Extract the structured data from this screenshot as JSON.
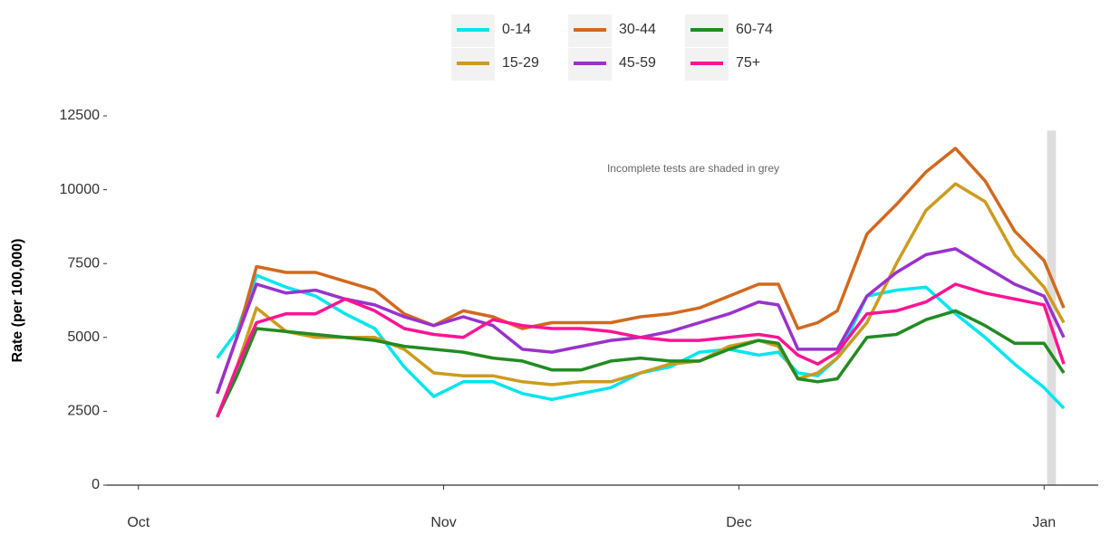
{
  "chart_data": {
    "type": "line",
    "y_label": "Rate (per 100,000)",
    "annotation": "Incomplete tests are shaded in grey",
    "x": [
      8,
      10,
      12,
      15,
      18,
      21,
      24,
      27,
      30,
      33,
      36,
      39,
      42,
      45,
      48,
      51,
      54,
      57,
      60,
      63,
      65,
      67,
      69,
      71,
      74,
      77,
      80,
      83,
      86,
      89,
      92,
      94
    ],
    "xlim": [
      -3.2,
      97.5
    ],
    "xticks": [
      {
        "value": 0,
        "label": "Oct"
      },
      {
        "value": 31,
        "label": "Nov"
      },
      {
        "value": 61,
        "label": "Dec"
      },
      {
        "value": 92,
        "label": "Jan"
      }
    ],
    "ylim": [
      0,
      12500
    ],
    "yticks": [
      0,
      2500,
      5000,
      7500,
      10000,
      12500
    ],
    "grid": false,
    "legend": "top",
    "shaded_region": {
      "xlim": [
        92.3,
        93.2
      ],
      "ylim": [
        0,
        12000
      ],
      "color": "#dddddd"
    },
    "series": [
      {
        "name": "0-14",
        "color": "#00e5ee",
        "values": [
          4300,
          5200,
          7100,
          6700,
          6400,
          5800,
          5300,
          4000,
          3000,
          3500,
          3500,
          3100,
          2900,
          3100,
          3300,
          3800,
          4000,
          4500,
          4600,
          4400,
          4500,
          3800,
          3700,
          4300,
          6400,
          6600,
          6700,
          5800,
          5000,
          4100,
          3300,
          2600
        ]
      },
      {
        "name": "15-29",
        "color": "#cd9b1d",
        "values": [
          2300,
          4000,
          6000,
          5200,
          5000,
          5000,
          5000,
          4600,
          3800,
          3700,
          3700,
          3500,
          3400,
          3500,
          3500,
          3800,
          4100,
          4200,
          4700,
          4900,
          4700,
          3600,
          3800,
          4300,
          5500,
          7500,
          9300,
          10200,
          9600,
          7800,
          6700,
          5500
        ]
      },
      {
        "name": "30-44",
        "color": "#d2691e",
        "values": [
          3100,
          5000,
          7400,
          7200,
          7200,
          6900,
          6600,
          5800,
          5400,
          5900,
          5700,
          5300,
          5500,
          5500,
          5500,
          5700,
          5800,
          6000,
          6400,
          6800,
          6800,
          5300,
          5500,
          5900,
          8500,
          9500,
          10600,
          11400,
          10300,
          8600,
          7600,
          6000
        ]
      },
      {
        "name": "45-59",
        "color": "#9932cc",
        "values": [
          3100,
          5000,
          6800,
          6500,
          6600,
          6300,
          6100,
          5700,
          5400,
          5700,
          5400,
          4600,
          4500,
          4700,
          4900,
          5000,
          5200,
          5500,
          5800,
          6200,
          6100,
          4600,
          4600,
          4600,
          6400,
          7200,
          7800,
          8000,
          7400,
          6800,
          6400,
          5000
        ]
      },
      {
        "name": "60-74",
        "color": "#228b22",
        "values": [
          2300,
          3700,
          5300,
          5200,
          5100,
          5000,
          4900,
          4700,
          4600,
          4500,
          4300,
          4200,
          3900,
          3900,
          4200,
          4300,
          4200,
          4200,
          4600,
          4900,
          4800,
          3600,
          3500,
          3600,
          5000,
          5100,
          5600,
          5900,
          5400,
          4800,
          4800,
          3800
        ]
      },
      {
        "name": "75+",
        "color": "#ff1493",
        "values": [
          2300,
          4000,
          5500,
          5800,
          5800,
          6300,
          5900,
          5300,
          5100,
          5000,
          5600,
          5400,
          5300,
          5300,
          5200,
          5000,
          4900,
          4900,
          5000,
          5100,
          5000,
          4400,
          4100,
          4500,
          5800,
          5900,
          6200,
          6800,
          6500,
          6300,
          6100,
          4100
        ]
      }
    ]
  }
}
